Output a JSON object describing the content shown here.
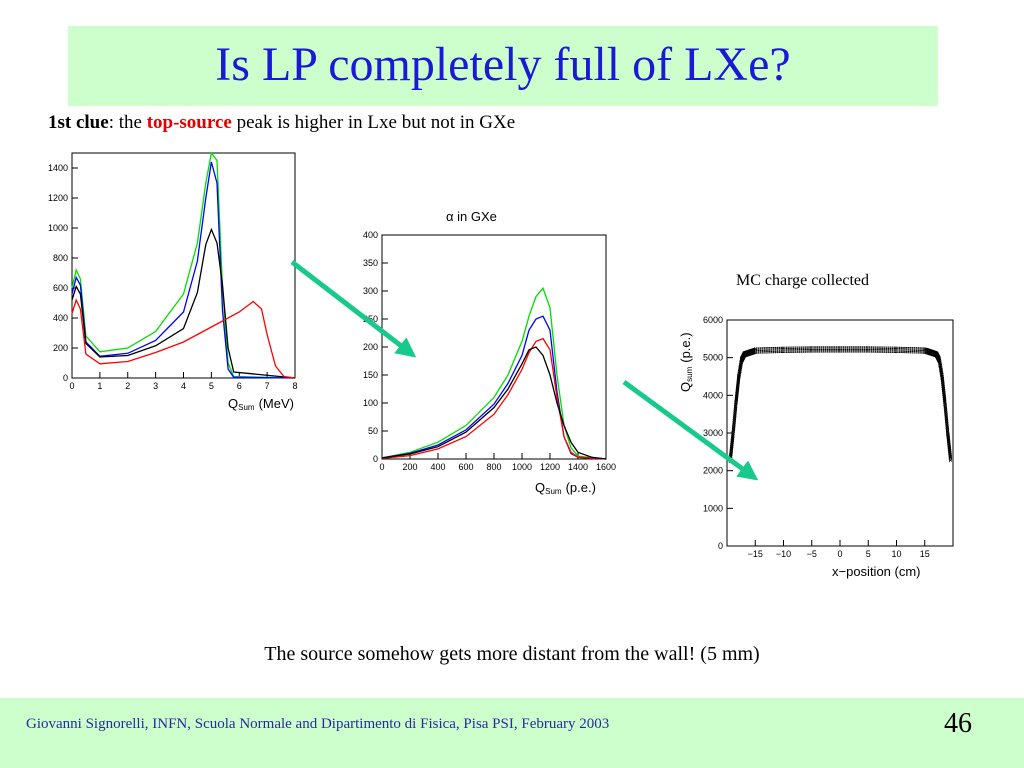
{
  "slide": {
    "title": "Is LP completely full of LXe?",
    "clue": {
      "prefix": "1st  clue",
      "colon": ": the ",
      "highlight": "top-source",
      "rest": " peak is higher in Lxe but not in GXe"
    },
    "mc_label": "MC charge collected",
    "conclusion": "The source somehow gets more distant from the wall! (5 mm)",
    "footer": "Giovanni Signorelli, INFN, Scuola Normale and  Dipartimento di Fisica, Pisa    PSI, February 2003",
    "page_number": "46",
    "arrow_color": "#17c98a"
  },
  "chart_data": [
    {
      "type": "line",
      "xlabel": "Q",
      "xlabel_sub": "Sum",
      "xlabel_unit": "(MeV)",
      "xlim": [
        0,
        8
      ],
      "ylim": [
        0,
        1500
      ],
      "xticks": [
        0,
        1,
        2,
        3,
        4,
        5,
        6,
        7,
        8
      ],
      "yticks": [
        0,
        200,
        400,
        600,
        800,
        1000,
        1200,
        1400
      ],
      "series": [
        {
          "color": "#00dd00",
          "points": [
            [
              0,
              600
            ],
            [
              0.15,
              720
            ],
            [
              0.3,
              660
            ],
            [
              0.5,
              280
            ],
            [
              1,
              175
            ],
            [
              2,
              200
            ],
            [
              3,
              310
            ],
            [
              4,
              560
            ],
            [
              4.5,
              900
            ],
            [
              4.8,
              1300
            ],
            [
              5,
              1500
            ],
            [
              5.2,
              1450
            ],
            [
              5.4,
              600
            ],
            [
              5.6,
              100
            ],
            [
              5.8,
              10
            ],
            [
              8,
              0
            ]
          ]
        },
        {
          "color": "#0000ff",
          "points": [
            [
              0,
              560
            ],
            [
              0.15,
              670
            ],
            [
              0.3,
              620
            ],
            [
              0.5,
              240
            ],
            [
              1,
              145
            ],
            [
              2,
              165
            ],
            [
              3,
              250
            ],
            [
              4,
              440
            ],
            [
              4.5,
              780
            ],
            [
              4.8,
              1200
            ],
            [
              5,
              1440
            ],
            [
              5.2,
              1300
            ],
            [
              5.4,
              450
            ],
            [
              5.6,
              60
            ],
            [
              5.8,
              5
            ],
            [
              8,
              0
            ]
          ]
        },
        {
          "color": "#000000",
          "points": [
            [
              0,
              520
            ],
            [
              0.15,
              610
            ],
            [
              0.3,
              560
            ],
            [
              0.5,
              230
            ],
            [
              1,
              140
            ],
            [
              2,
              150
            ],
            [
              3,
              215
            ],
            [
              4,
              330
            ],
            [
              4.5,
              570
            ],
            [
              4.8,
              890
            ],
            [
              5,
              990
            ],
            [
              5.2,
              900
            ],
            [
              5.4,
              620
            ],
            [
              5.6,
              200
            ],
            [
              5.8,
              40
            ],
            [
              8,
              0
            ]
          ]
        },
        {
          "color": "#ff0000",
          "points": [
            [
              0,
              430
            ],
            [
              0.15,
              520
            ],
            [
              0.3,
              460
            ],
            [
              0.5,
              160
            ],
            [
              1,
              95
            ],
            [
              2,
              110
            ],
            [
              3,
              170
            ],
            [
              4,
              240
            ],
            [
              5,
              340
            ],
            [
              6,
              440
            ],
            [
              6.5,
              510
            ],
            [
              6.8,
              460
            ],
            [
              7,
              290
            ],
            [
              7.3,
              80
            ],
            [
              7.6,
              10
            ],
            [
              8,
              0
            ]
          ]
        }
      ]
    },
    {
      "type": "line",
      "title": "α in GXe",
      "xlabel": "Q",
      "xlabel_sub": "Sum",
      "xlabel_unit": "(p.e.)",
      "xlim": [
        0,
        1600
      ],
      "ylim": [
        0,
        400
      ],
      "xticks": [
        0,
        200,
        400,
        600,
        800,
        1000,
        1200,
        1400,
        1600
      ],
      "yticks": [
        0,
        50,
        100,
        150,
        200,
        250,
        300,
        350,
        400
      ],
      "series": [
        {
          "color": "#00dd00",
          "points": [
            [
              0,
              2
            ],
            [
              200,
              12
            ],
            [
              400,
              30
            ],
            [
              600,
              60
            ],
            [
              800,
              110
            ],
            [
              900,
              150
            ],
            [
              1000,
              210
            ],
            [
              1050,
              255
            ],
            [
              1100,
              290
            ],
            [
              1150,
              305
            ],
            [
              1200,
              270
            ],
            [
              1250,
              150
            ],
            [
              1300,
              60
            ],
            [
              1350,
              20
            ],
            [
              1400,
              5
            ],
            [
              1600,
              0
            ]
          ]
        },
        {
          "color": "#0000ff",
          "points": [
            [
              0,
              2
            ],
            [
              200,
              10
            ],
            [
              400,
              25
            ],
            [
              600,
              52
            ],
            [
              800,
              98
            ],
            [
              900,
              135
            ],
            [
              1000,
              185
            ],
            [
              1050,
              230
            ],
            [
              1100,
              250
            ],
            [
              1150,
              255
            ],
            [
              1200,
              230
            ],
            [
              1250,
              120
            ],
            [
              1300,
              40
            ],
            [
              1350,
              10
            ],
            [
              1400,
              3
            ],
            [
              1600,
              0
            ]
          ]
        },
        {
          "color": "#ff0000",
          "points": [
            [
              0,
              1
            ],
            [
              200,
              6
            ],
            [
              400,
              18
            ],
            [
              600,
              40
            ],
            [
              800,
              80
            ],
            [
              900,
              115
            ],
            [
              1000,
              160
            ],
            [
              1050,
              190
            ],
            [
              1100,
              210
            ],
            [
              1150,
              215
            ],
            [
              1200,
              195
            ],
            [
              1250,
              110
            ],
            [
              1300,
              40
            ],
            [
              1350,
              12
            ],
            [
              1400,
              3
            ],
            [
              1600,
              0
            ]
          ]
        },
        {
          "color": "#000000",
          "points": [
            [
              0,
              2
            ],
            [
              200,
              9
            ],
            [
              400,
              22
            ],
            [
              600,
              48
            ],
            [
              800,
              92
            ],
            [
              900,
              125
            ],
            [
              1000,
              170
            ],
            [
              1050,
              195
            ],
            [
              1100,
              200
            ],
            [
              1150,
              185
            ],
            [
              1200,
              150
            ],
            [
              1250,
              100
            ],
            [
              1300,
              60
            ],
            [
              1350,
              30
            ],
            [
              1400,
              12
            ],
            [
              1500,
              3
            ],
            [
              1600,
              0
            ]
          ]
        }
      ]
    },
    {
      "type": "scatter",
      "ylabel": "Q",
      "ylabel_sub": "sum",
      "ylabel_unit": "(p.e.)",
      "xlabel": "x−position (cm)",
      "xlim": [
        -20,
        20
      ],
      "ylim": [
        0,
        6000
      ],
      "xticks": [
        -15,
        -10,
        -5,
        0,
        5,
        10,
        15
      ],
      "xtick_labels": [
        "−15",
        "−10",
        "−5",
        "0",
        "5",
        "10",
        "15"
      ],
      "yticks": [
        0,
        1000,
        2000,
        3000,
        4000,
        5000,
        6000
      ],
      "series": [
        {
          "color": "#000000",
          "points": [
            [
              -19.5,
              2300
            ],
            [
              -19,
              3000
            ],
            [
              -18.5,
              3800
            ],
            [
              -18,
              4500
            ],
            [
              -17.5,
              4950
            ],
            [
              -17,
              5100
            ],
            [
              -15,
              5200
            ],
            [
              -10,
              5220
            ],
            [
              -5,
              5230
            ],
            [
              0,
              5230
            ],
            [
              5,
              5230
            ],
            [
              10,
              5220
            ],
            [
              15,
              5200
            ],
            [
              17,
              5100
            ],
            [
              17.5,
              4950
            ],
            [
              18,
              4500
            ],
            [
              18.5,
              3800
            ],
            [
              19,
              3000
            ],
            [
              19.5,
              2300
            ]
          ]
        }
      ]
    }
  ]
}
